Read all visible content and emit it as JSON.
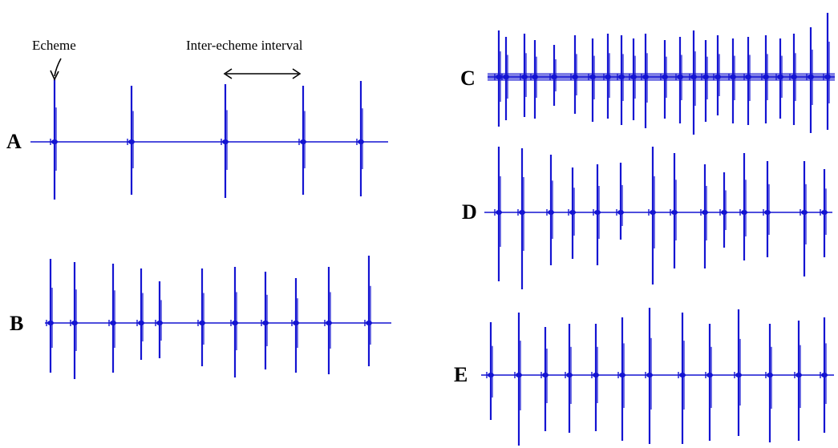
{
  "figure": {
    "trace_color": "#1414d2",
    "background_color": "#ffffff",
    "label_color": "#000000",
    "annotations": {
      "echeme_label": "Echeme",
      "interval_label": "Inter-echeme interval"
    },
    "panels": [
      {
        "id": "A",
        "label": "A",
        "echemes": [
          {
            "x": 68,
            "up": 78,
            "down": 72
          },
          {
            "x": 164,
            "up": 70,
            "down": 66
          },
          {
            "x": 281,
            "up": 72,
            "down": 70
          },
          {
            "x": 378,
            "up": 70,
            "down": 66
          },
          {
            "x": 450,
            "up": 76,
            "down": 68
          }
        ]
      },
      {
        "id": "B",
        "label": "B",
        "echemes": [
          {
            "x": 63,
            "up": 80,
            "down": 62
          },
          {
            "x": 93,
            "up": 76,
            "down": 70
          },
          {
            "x": 141,
            "up": 74,
            "down": 62
          },
          {
            "x": 176,
            "up": 68,
            "down": 46
          },
          {
            "x": 199,
            "up": 52,
            "down": 44
          },
          {
            "x": 252,
            "up": 68,
            "down": 54
          },
          {
            "x": 293,
            "up": 70,
            "down": 68
          },
          {
            "x": 331,
            "up": 64,
            "down": 58
          },
          {
            "x": 369,
            "up": 56,
            "down": 62
          },
          {
            "x": 410,
            "up": 70,
            "down": 64
          },
          {
            "x": 460,
            "up": 84,
            "down": 54
          }
        ]
      },
      {
        "id": "C",
        "label": "C",
        "echemes": [
          {
            "x": 622,
            "up": 58,
            "down": 62
          },
          {
            "x": 631,
            "up": 50,
            "down": 54
          },
          {
            "x": 654,
            "up": 54,
            "down": 50
          },
          {
            "x": 667,
            "up": 46,
            "down": 52
          },
          {
            "x": 691,
            "up": 40,
            "down": 36
          },
          {
            "x": 717,
            "up": 52,
            "down": 46
          },
          {
            "x": 739,
            "up": 48,
            "down": 56
          },
          {
            "x": 758,
            "up": 54,
            "down": 52
          },
          {
            "x": 775,
            "up": 52,
            "down": 60
          },
          {
            "x": 790,
            "up": 48,
            "down": 54
          },
          {
            "x": 805,
            "up": 54,
            "down": 64
          },
          {
            "x": 829,
            "up": 46,
            "down": 52
          },
          {
            "x": 848,
            "up": 50,
            "down": 58
          },
          {
            "x": 865,
            "up": 58,
            "down": 72
          },
          {
            "x": 880,
            "up": 46,
            "down": 56
          },
          {
            "x": 895,
            "up": 52,
            "down": 48
          },
          {
            "x": 914,
            "up": 48,
            "down": 58
          },
          {
            "x": 933,
            "up": 50,
            "down": 60
          },
          {
            "x": 955,
            "up": 52,
            "down": 58
          },
          {
            "x": 973,
            "up": 48,
            "down": 52
          },
          {
            "x": 990,
            "up": 54,
            "down": 60
          },
          {
            "x": 1011,
            "up": 62,
            "down": 70
          },
          {
            "x": 1032,
            "up": 80,
            "down": 66
          }
        ]
      },
      {
        "id": "D",
        "label": "D",
        "echemes": [
          {
            "x": 622,
            "up": 82,
            "down": 86
          },
          {
            "x": 651,
            "up": 80,
            "down": 96
          },
          {
            "x": 687,
            "up": 72,
            "down": 66
          },
          {
            "x": 714,
            "up": 56,
            "down": 58
          },
          {
            "x": 745,
            "up": 60,
            "down": 66
          },
          {
            "x": 774,
            "up": 62,
            "down": 34
          },
          {
            "x": 814,
            "up": 82,
            "down": 90
          },
          {
            "x": 841,
            "up": 74,
            "down": 70
          },
          {
            "x": 879,
            "up": 60,
            "down": 70
          },
          {
            "x": 903,
            "up": 50,
            "down": 44
          },
          {
            "x": 928,
            "up": 74,
            "down": 60
          },
          {
            "x": 957,
            "up": 64,
            "down": 56
          },
          {
            "x": 1003,
            "up": 64,
            "down": 80
          },
          {
            "x": 1028,
            "up": 54,
            "down": 56
          }
        ]
      },
      {
        "id": "E",
        "label": "E",
        "echemes": [
          {
            "x": 612,
            "up": 66,
            "down": 56
          },
          {
            "x": 647,
            "up": 78,
            "down": 88
          },
          {
            "x": 680,
            "up": 60,
            "down": 70
          },
          {
            "x": 710,
            "up": 64,
            "down": 72
          },
          {
            "x": 743,
            "up": 64,
            "down": 70
          },
          {
            "x": 776,
            "up": 72,
            "down": 82
          },
          {
            "x": 810,
            "up": 84,
            "down": 86
          },
          {
            "x": 851,
            "up": 78,
            "down": 86
          },
          {
            "x": 885,
            "up": 64,
            "down": 82
          },
          {
            "x": 921,
            "up": 82,
            "down": 76
          },
          {
            "x": 960,
            "up": 64,
            "down": 84
          },
          {
            "x": 996,
            "up": 68,
            "down": 82
          },
          {
            "x": 1028,
            "up": 72,
            "down": 72
          }
        ]
      }
    ]
  }
}
